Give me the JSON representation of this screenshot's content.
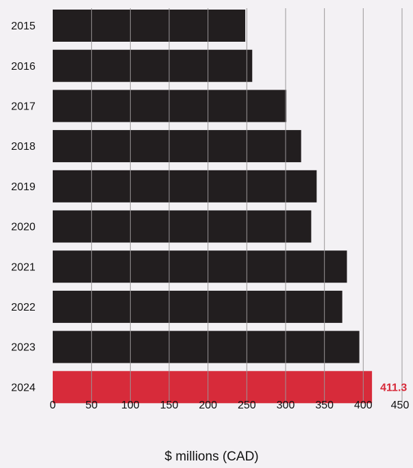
{
  "chart_data": {
    "type": "bar",
    "orientation": "horizontal",
    "categories": [
      "2015",
      "2016",
      "2017",
      "2018",
      "2019",
      "2020",
      "2021",
      "2022",
      "2023",
      "2024"
    ],
    "values": [
      248,
      257,
      301,
      320,
      340,
      333,
      379,
      373,
      395,
      411.3
    ],
    "highlight": {
      "category": "2024",
      "label": "411.3"
    },
    "xlabel": "$  millions (CAD)",
    "xlim": [
      0,
      450
    ],
    "xticks": [
      0,
      50,
      100,
      150,
      200,
      250,
      300,
      350,
      400,
      450
    ],
    "grid": "vertical",
    "colors": {
      "bar": "#221e1f",
      "highlight": "#d72b3a",
      "background": "#f3f1f4",
      "gridline": "#9a9698"
    }
  }
}
